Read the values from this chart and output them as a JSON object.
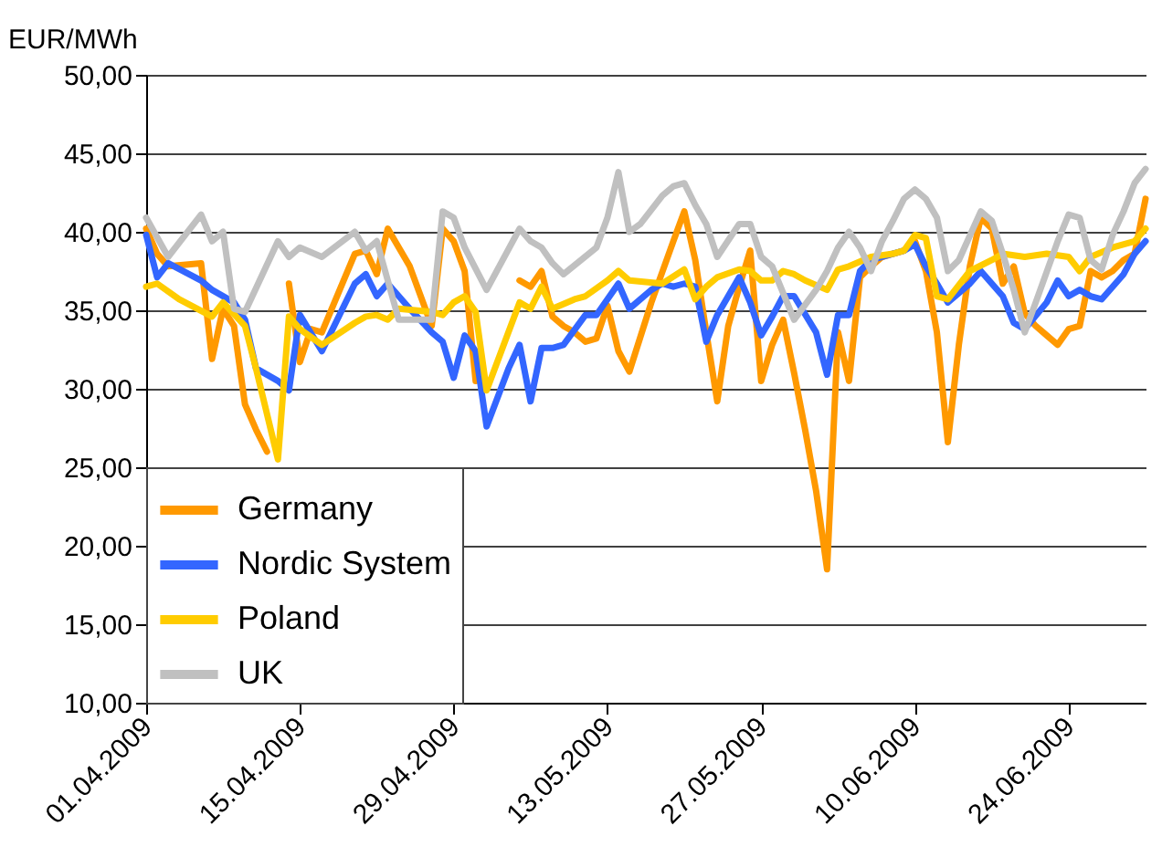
{
  "chart_data": {
    "type": "line",
    "ylabel": "EUR/MWh",
    "xlim": [
      "2009-04-01",
      "2009-07-01"
    ],
    "xticks": [
      {
        "value": "2009-04-01",
        "label": "01.04.2009"
      },
      {
        "value": "2009-04-15",
        "label": "15.04.2009"
      },
      {
        "value": "2009-04-29",
        "label": "29.04.2009"
      },
      {
        "value": "2009-05-13",
        "label": "13.05.2009"
      },
      {
        "value": "2009-05-27",
        "label": "27.05.2009"
      },
      {
        "value": "2009-06-10",
        "label": "10.06.2009"
      },
      {
        "value": "2009-06-24",
        "label": "24.06.2009"
      }
    ],
    "ylim": [
      10,
      50
    ],
    "yticks": [
      {
        "value": 10,
        "label": "10,00"
      },
      {
        "value": 15,
        "label": "15,00"
      },
      {
        "value": 20,
        "label": "20,00"
      },
      {
        "value": 25,
        "label": "25,00"
      },
      {
        "value": 30,
        "label": "30,00"
      },
      {
        "value": 35,
        "label": "35,00"
      },
      {
        "value": 40,
        "label": "40,00"
      },
      {
        "value": 45,
        "label": "45,00"
      },
      {
        "value": 50,
        "label": "50,00"
      }
    ],
    "grid": "y",
    "legend": "bottom left",
    "line_style": "solid",
    "series": [
      {
        "name": "Germany",
        "color": "#ff9900",
        "x": [
          "2009-04-01",
          "2009-04-02",
          "2009-04-03",
          "2009-04-06",
          "2009-04-07",
          "2009-04-08",
          "2009-04-09",
          "2009-04-10",
          "2009-04-11",
          "2009-04-12",
          "2009-04-13",
          "2009-04-14",
          "2009-04-15",
          "2009-04-16",
          "2009-04-17",
          "2009-04-20",
          "2009-04-21",
          "2009-04-22",
          "2009-04-23",
          "2009-04-25",
          "2009-04-27",
          "2009-04-28",
          "2009-04-29",
          "2009-04-30",
          "2009-05-01",
          "2009-05-02",
          "2009-05-04",
          "2009-05-05",
          "2009-05-06",
          "2009-05-07",
          "2009-05-08",
          "2009-05-09",
          "2009-05-10",
          "2009-05-11",
          "2009-05-12",
          "2009-05-13",
          "2009-05-14",
          "2009-05-15",
          "2009-05-17",
          "2009-05-19",
          "2009-05-20",
          "2009-05-21",
          "2009-05-22",
          "2009-05-23",
          "2009-05-24",
          "2009-05-25",
          "2009-05-26",
          "2009-05-27",
          "2009-05-28",
          "2009-05-29",
          "2009-05-30",
          "2009-05-31",
          "2009-06-01",
          "2009-06-02",
          "2009-06-03",
          "2009-06-04",
          "2009-06-05",
          "2009-06-06",
          "2009-06-07",
          "2009-06-08",
          "2009-06-09",
          "2009-06-10",
          "2009-06-11",
          "2009-06-12",
          "2009-06-13",
          "2009-06-14",
          "2009-06-15",
          "2009-06-16",
          "2009-06-17",
          "2009-06-18",
          "2009-06-19",
          "2009-06-20",
          "2009-06-21",
          "2009-06-22",
          "2009-06-23",
          "2009-06-24",
          "2009-06-25",
          "2009-06-26",
          "2009-06-27",
          "2009-06-28",
          "2009-06-29",
          "2009-06-30",
          "2009-07-01"
        ],
        "values": [
          40.2,
          38.6,
          37.8,
          38,
          31.9,
          35.1,
          34,
          29,
          27.4,
          26,
          null,
          36.7,
          31.7,
          33.8,
          33.6,
          38.6,
          38.8,
          37.3,
          40.2,
          37.8,
          34,
          40.2,
          39.4,
          37.5,
          30.5,
          null,
          null,
          36.9,
          36.5,
          37.5,
          34.6,
          34,
          33.6,
          33,
          33.2,
          35.3,
          32.4,
          31.1,
          35.5,
          39.4,
          41.3,
          38.2,
          33.6,
          29.2,
          34,
          36.5,
          38.8,
          30.5,
          32.8,
          34.4,
          31,
          27.4,
          23.5,
          18.5,
          33.6,
          30.5,
          37.1,
          37.8,
          38.4,
          38.6,
          38.8,
          39.4,
          37.5,
          33.6,
          26.6,
          32.8,
          37.8,
          40.9,
          40.2,
          36.7,
          37.8,
          34.8,
          34,
          33.4,
          32.8,
          33.8,
          34,
          37.5,
          37.1,
          37.5,
          38.2,
          38.6,
          42.1
        ]
      },
      {
        "name": "Nordic System",
        "color": "#3366ff",
        "x": [
          "2009-04-01",
          "2009-04-02",
          "2009-04-03",
          "2009-04-06",
          "2009-04-07",
          "2009-04-09",
          "2009-04-10",
          "2009-04-11",
          "2009-04-13",
          "2009-04-14",
          "2009-04-15",
          "2009-04-17",
          "2009-04-20",
          "2009-04-21",
          "2009-04-22",
          "2009-04-23",
          "2009-04-25",
          "2009-04-27",
          "2009-04-28",
          "2009-04-29",
          "2009-04-30",
          "2009-05-01",
          "2009-05-02",
          "2009-05-04",
          "2009-05-05",
          "2009-05-06",
          "2009-05-07",
          "2009-05-08",
          "2009-05-09",
          "2009-05-11",
          "2009-05-12",
          "2009-05-14",
          "2009-05-15",
          "2009-05-17",
          "2009-05-18",
          "2009-05-19",
          "2009-05-20",
          "2009-05-21",
          "2009-05-22",
          "2009-05-23",
          "2009-05-25",
          "2009-05-26",
          "2009-05-27",
          "2009-05-28",
          "2009-05-29",
          "2009-05-30",
          "2009-06-01",
          "2009-06-02",
          "2009-06-03",
          "2009-06-04",
          "2009-06-05",
          "2009-06-06",
          "2009-06-09",
          "2009-06-10",
          "2009-06-11",
          "2009-06-12",
          "2009-06-13",
          "2009-06-15",
          "2009-06-16",
          "2009-06-17",
          "2009-06-18",
          "2009-06-19",
          "2009-06-20",
          "2009-06-22",
          "2009-06-23",
          "2009-06-24",
          "2009-06-25",
          "2009-06-26",
          "2009-06-27",
          "2009-06-29",
          "2009-06-30",
          "2009-07-01"
        ],
        "values": [
          39.8,
          37.1,
          38,
          36.9,
          36.3,
          35.5,
          34.4,
          31.3,
          30.5,
          29.9,
          34.7,
          32.4,
          36.7,
          37.3,
          35.9,
          36.7,
          35.1,
          33.6,
          33,
          30.7,
          33.4,
          32.4,
          27.6,
          31.3,
          32.8,
          29.2,
          32.6,
          32.6,
          32.8,
          34.7,
          34.7,
          36.7,
          35.1,
          36.3,
          36.7,
          36.5,
          36.7,
          36.5,
          33,
          34.7,
          37.1,
          35.5,
          33.4,
          34.6,
          35.9,
          35.9,
          33.6,
          30.9,
          34.7,
          34.7,
          37.5,
          38.2,
          38.8,
          39.2,
          37.8,
          36.7,
          35.5,
          36.7,
          37.5,
          36.7,
          35.9,
          34.2,
          33.8,
          35.5,
          36.9,
          35.9,
          36.3,
          35.9,
          35.7,
          37.3,
          38.6,
          39.4
        ]
      },
      {
        "name": "Poland",
        "color": "#ffcc00",
        "x": [
          "2009-04-01",
          "2009-04-02",
          "2009-04-04",
          "2009-04-07",
          "2009-04-08",
          "2009-04-10",
          "2009-04-11",
          "2009-04-13",
          "2009-04-14",
          "2009-04-15",
          "2009-04-17",
          "2009-04-20",
          "2009-04-21",
          "2009-04-22",
          "2009-04-23",
          "2009-04-24",
          "2009-04-27",
          "2009-04-28",
          "2009-04-29",
          "2009-04-30",
          "2009-05-01",
          "2009-05-02",
          "2009-05-05",
          "2009-05-06",
          "2009-05-07",
          "2009-05-08",
          "2009-05-10",
          "2009-05-11",
          "2009-05-13",
          "2009-05-14",
          "2009-05-15",
          "2009-05-18",
          "2009-05-20",
          "2009-05-21",
          "2009-05-22",
          "2009-05-23",
          "2009-05-25",
          "2009-05-26",
          "2009-05-27",
          "2009-05-28",
          "2009-05-29",
          "2009-05-30",
          "2009-05-31",
          "2009-06-02",
          "2009-06-03",
          "2009-06-04",
          "2009-06-06",
          "2009-06-08",
          "2009-06-09",
          "2009-06-10",
          "2009-06-11",
          "2009-06-12",
          "2009-06-13",
          "2009-06-15",
          "2009-06-17",
          "2009-06-18",
          "2009-06-20",
          "2009-06-22",
          "2009-06-24",
          "2009-06-25",
          "2009-06-26",
          "2009-06-28",
          "2009-06-30",
          "2009-07-01"
        ],
        "values": [
          36.5,
          36.7,
          35.7,
          34.6,
          35.5,
          34,
          31.3,
          25.5,
          34.6,
          33.8,
          32.8,
          34.2,
          34.6,
          34.7,
          34.4,
          35.1,
          34.9,
          34.7,
          35.5,
          35.9,
          34.9,
          29.9,
          35.5,
          35.1,
          36.5,
          35.1,
          35.7,
          35.9,
          36.9,
          37.5,
          36.9,
          36.7,
          37.6,
          35.7,
          36.5,
          37.1,
          37.6,
          37.5,
          36.9,
          36.9,
          37.5,
          37.3,
          36.9,
          36.3,
          37.6,
          37.8,
          38.4,
          38.6,
          38.8,
          39.8,
          39.6,
          35.9,
          35.7,
          37.5,
          38.2,
          38.6,
          38.4,
          38.6,
          38.4,
          37.5,
          38.4,
          39,
          39.4,
          40.2
        ]
      },
      {
        "name": "UK",
        "color": "#c0c0c0",
        "x": [
          "2009-04-01",
          "2009-04-03",
          "2009-04-06",
          "2009-04-07",
          "2009-04-08",
          "2009-04-09",
          "2009-04-10",
          "2009-04-13",
          "2009-04-14",
          "2009-04-15",
          "2009-04-17",
          "2009-04-20",
          "2009-04-21",
          "2009-04-22",
          "2009-04-24",
          "2009-04-27",
          "2009-04-28",
          "2009-04-29",
          "2009-04-30",
          "2009-05-02",
          "2009-05-05",
          "2009-05-06",
          "2009-05-07",
          "2009-05-08",
          "2009-05-09",
          "2009-05-12",
          "2009-05-13",
          "2009-05-14",
          "2009-05-15",
          "2009-05-16",
          "2009-05-18",
          "2009-05-19",
          "2009-05-20",
          "2009-05-21",
          "2009-05-22",
          "2009-05-23",
          "2009-05-25",
          "2009-05-26",
          "2009-05-27",
          "2009-05-28",
          "2009-05-30",
          "2009-06-01",
          "2009-06-02",
          "2009-06-03",
          "2009-06-04",
          "2009-06-05",
          "2009-06-06",
          "2009-06-07",
          "2009-06-08",
          "2009-06-09",
          "2009-06-10",
          "2009-06-11",
          "2009-06-12",
          "2009-06-13",
          "2009-06-14",
          "2009-06-16",
          "2009-06-17",
          "2009-06-18",
          "2009-06-19",
          "2009-06-20",
          "2009-06-21",
          "2009-06-23",
          "2009-06-24",
          "2009-06-25",
          "2009-06-26",
          "2009-06-27",
          "2009-06-28",
          "2009-06-29",
          "2009-06-30",
          "2009-07-01"
        ],
        "values": [
          40.9,
          38.4,
          41.1,
          39.4,
          40,
          35.1,
          34.9,
          39.4,
          38.4,
          39,
          38.4,
          40,
          38.8,
          39.4,
          34.4,
          34.4,
          41.3,
          40.9,
          39,
          36.3,
          40.2,
          39.4,
          39,
          38,
          37.3,
          39,
          40.9,
          43.8,
          40,
          40.5,
          42.3,
          42.9,
          43.1,
          41.7,
          40.5,
          38.4,
          40.5,
          40.5,
          38.4,
          37.8,
          34.4,
          36.3,
          37.5,
          39,
          40,
          39,
          37.5,
          39.4,
          40.7,
          42.1,
          42.7,
          42.1,
          40.9,
          37.5,
          38.2,
          41.3,
          40.7,
          38.6,
          36.3,
          33.6,
          35.5,
          39.4,
          41.1,
          40.9,
          38.2,
          37.6,
          39.8,
          41.3,
          43.1,
          44
        ]
      }
    ]
  }
}
